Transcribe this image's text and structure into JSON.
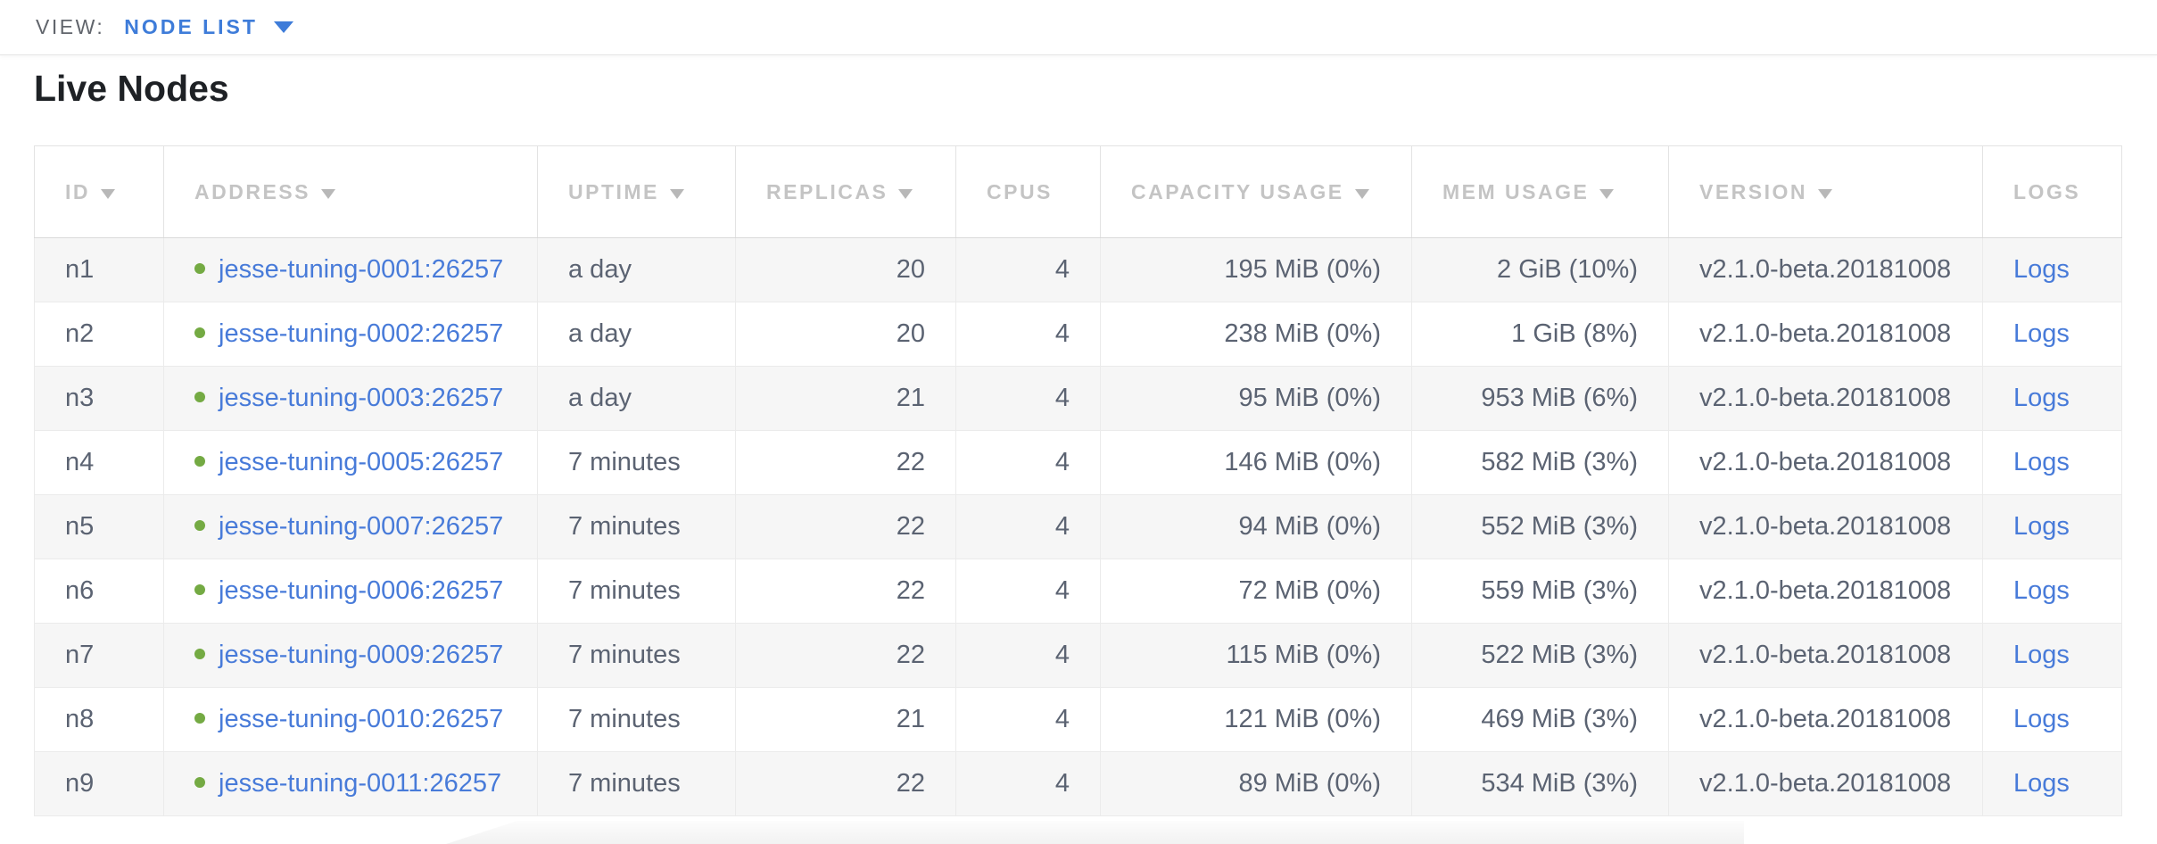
{
  "view_bar": {
    "label": "VIEW:",
    "selected_view": "NODE LIST"
  },
  "page": {
    "title": "Live Nodes"
  },
  "table": {
    "columns": [
      {
        "id": "id",
        "label": "ID",
        "sortable": true,
        "align": "left"
      },
      {
        "id": "address",
        "label": "ADDRESS",
        "sortable": true,
        "align": "left"
      },
      {
        "id": "uptime",
        "label": "UPTIME",
        "sortable": true,
        "align": "left"
      },
      {
        "id": "replicas",
        "label": "REPLICAS",
        "sortable": true,
        "align": "right"
      },
      {
        "id": "cpus",
        "label": "CPUS",
        "sortable": false,
        "align": "right"
      },
      {
        "id": "capacity",
        "label": "CAPACITY USAGE",
        "sortable": true,
        "align": "right"
      },
      {
        "id": "mem",
        "label": "MEM USAGE",
        "sortable": true,
        "align": "right"
      },
      {
        "id": "version",
        "label": "VERSION",
        "sortable": true,
        "align": "left"
      },
      {
        "id": "logs",
        "label": "LOGS",
        "sortable": false,
        "align": "left"
      }
    ],
    "rows": [
      {
        "id": "n1",
        "status": "healthy",
        "address": "jesse-tuning-0001:26257",
        "uptime": "a day",
        "replicas": "20",
        "cpus": "4",
        "capacity": "195 MiB (0%)",
        "mem": "2 GiB (10%)",
        "version": "v2.1.0-beta.20181008",
        "logs": "Logs"
      },
      {
        "id": "n2",
        "status": "healthy",
        "address": "jesse-tuning-0002:26257",
        "uptime": "a day",
        "replicas": "20",
        "cpus": "4",
        "capacity": "238 MiB (0%)",
        "mem": "1 GiB (8%)",
        "version": "v2.1.0-beta.20181008",
        "logs": "Logs"
      },
      {
        "id": "n3",
        "status": "healthy",
        "address": "jesse-tuning-0003:26257",
        "uptime": "a day",
        "replicas": "21",
        "cpus": "4",
        "capacity": "95 MiB (0%)",
        "mem": "953 MiB (6%)",
        "version": "v2.1.0-beta.20181008",
        "logs": "Logs"
      },
      {
        "id": "n4",
        "status": "healthy",
        "address": "jesse-tuning-0005:26257",
        "uptime": "7 minutes",
        "replicas": "22",
        "cpus": "4",
        "capacity": "146 MiB (0%)",
        "mem": "582 MiB (3%)",
        "version": "v2.1.0-beta.20181008",
        "logs": "Logs"
      },
      {
        "id": "n5",
        "status": "healthy",
        "address": "jesse-tuning-0007:26257",
        "uptime": "7 minutes",
        "replicas": "22",
        "cpus": "4",
        "capacity": "94 MiB (0%)",
        "mem": "552 MiB (3%)",
        "version": "v2.1.0-beta.20181008",
        "logs": "Logs"
      },
      {
        "id": "n6",
        "status": "healthy",
        "address": "jesse-tuning-0006:26257",
        "uptime": "7 minutes",
        "replicas": "22",
        "cpus": "4",
        "capacity": "72 MiB (0%)",
        "mem": "559 MiB (3%)",
        "version": "v2.1.0-beta.20181008",
        "logs": "Logs"
      },
      {
        "id": "n7",
        "status": "healthy",
        "address": "jesse-tuning-0009:26257",
        "uptime": "7 minutes",
        "replicas": "22",
        "cpus": "4",
        "capacity": "115 MiB (0%)",
        "mem": "522 MiB (3%)",
        "version": "v2.1.0-beta.20181008",
        "logs": "Logs"
      },
      {
        "id": "n8",
        "status": "healthy",
        "address": "jesse-tuning-0010:26257",
        "uptime": "7 minutes",
        "replicas": "21",
        "cpus": "4",
        "capacity": "121 MiB (0%)",
        "mem": "469 MiB (3%)",
        "version": "v2.1.0-beta.20181008",
        "logs": "Logs"
      },
      {
        "id": "n9",
        "status": "healthy",
        "address": "jesse-tuning-0011:26257",
        "uptime": "7 minutes",
        "replicas": "22",
        "cpus": "4",
        "capacity": "89 MiB (0%)",
        "mem": "534 MiB (3%)",
        "version": "v2.1.0-beta.20181008",
        "logs": "Logs"
      }
    ]
  },
  "colors": {
    "accent_blue": "#3e7cd9",
    "link_blue": "#487bd9",
    "status_green": "#74aa43",
    "header_gray": "#c4c4c4",
    "text_slate": "#5b6372"
  }
}
